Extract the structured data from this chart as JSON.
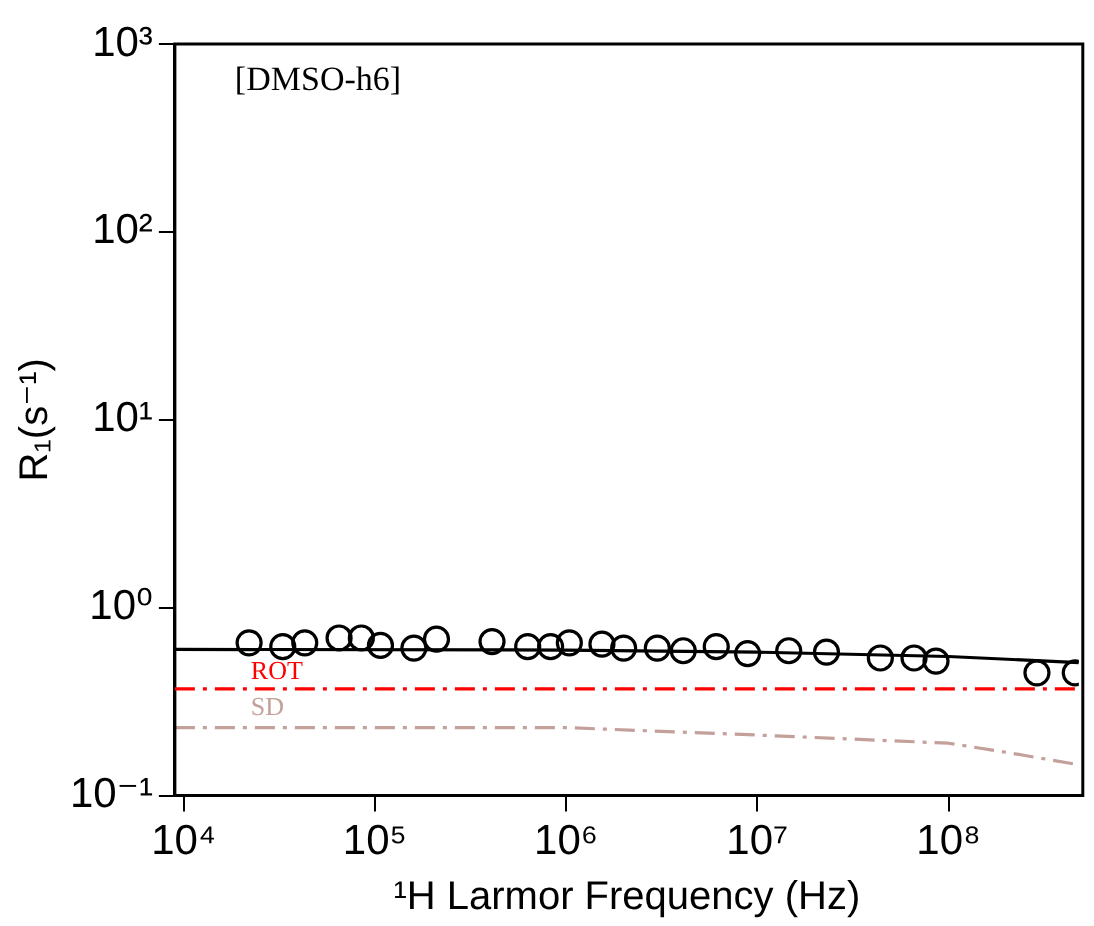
{
  "chart_data": {
    "type": "scatter",
    "xlabel": "¹H Larmor Frequency (Hz)",
    "ylabel": "R₁(s⁻¹)",
    "annotations": [
      "[DMSO-h6]"
    ],
    "log": "xy",
    "grid": false,
    "legend": false,
    "xlim": [
      9000,
      480000000
    ],
    "xticks": [
      {
        "value": 10000,
        "label": "10⁴"
      },
      {
        "value": 100000,
        "label": "10⁵"
      },
      {
        "value": 1000000,
        "label": "10⁶"
      },
      {
        "value": 10000000,
        "label": "10⁷"
      },
      {
        "value": 100000000,
        "label": "10⁸"
      }
    ],
    "ylim": [
      0.1,
      1000
    ],
    "yticks": [
      {
        "value": 0.1,
        "label": "10⁻¹"
      },
      {
        "value": 1,
        "label": "10⁰"
      },
      {
        "value": 10,
        "label": "10¹"
      },
      {
        "value": 100,
        "label": "10²"
      },
      {
        "value": 1000,
        "label": "10³"
      }
    ],
    "x": [
      22000,
      33000,
      43000,
      65000,
      85000,
      107000,
      160000,
      210000,
      410000,
      630000,
      830000,
      1040000,
      1540000,
      2000000,
      3000000,
      4100000,
      6100000,
      8900000,
      14600000,
      23000000,
      44000000,
      66000000,
      86000000,
      290000000,
      460000000
    ],
    "series": [
      {
        "marker": "circle",
        "color": "#000000",
        "values": [
          0.65,
          0.62,
          0.65,
          0.69,
          0.69,
          0.63,
          0.61,
          0.68,
          0.66,
          0.62,
          0.62,
          0.65,
          0.64,
          0.61,
          0.61,
          0.59,
          0.62,
          0.57,
          0.59,
          0.58,
          0.54,
          0.54,
          0.52,
          0.45,
          0.45
        ]
      },
      {
        "type": "line",
        "marker": "none",
        "line_style": "solid",
        "color": "#000000",
        "x": [
          9000,
          1000000,
          10000000,
          100000000,
          480000000
        ],
        "values": [
          0.6,
          0.595,
          0.58,
          0.55,
          0.51
        ]
      },
      {
        "type": "line",
        "name": "SD",
        "marker": "none",
        "line_style": "dashed",
        "color": "#c4a09a",
        "x": [
          9000,
          1000000,
          10000000,
          100000000,
          200000000,
          480000000
        ],
        "values": [
          0.23,
          0.23,
          0.21,
          0.19,
          0.17,
          0.146
        ]
      }
    ],
    "ref_lines": [
      {
        "axis": "y",
        "value": 0.37,
        "label": "ROT",
        "color": "#ff0000",
        "line_style": "dashed"
      }
    ]
  }
}
